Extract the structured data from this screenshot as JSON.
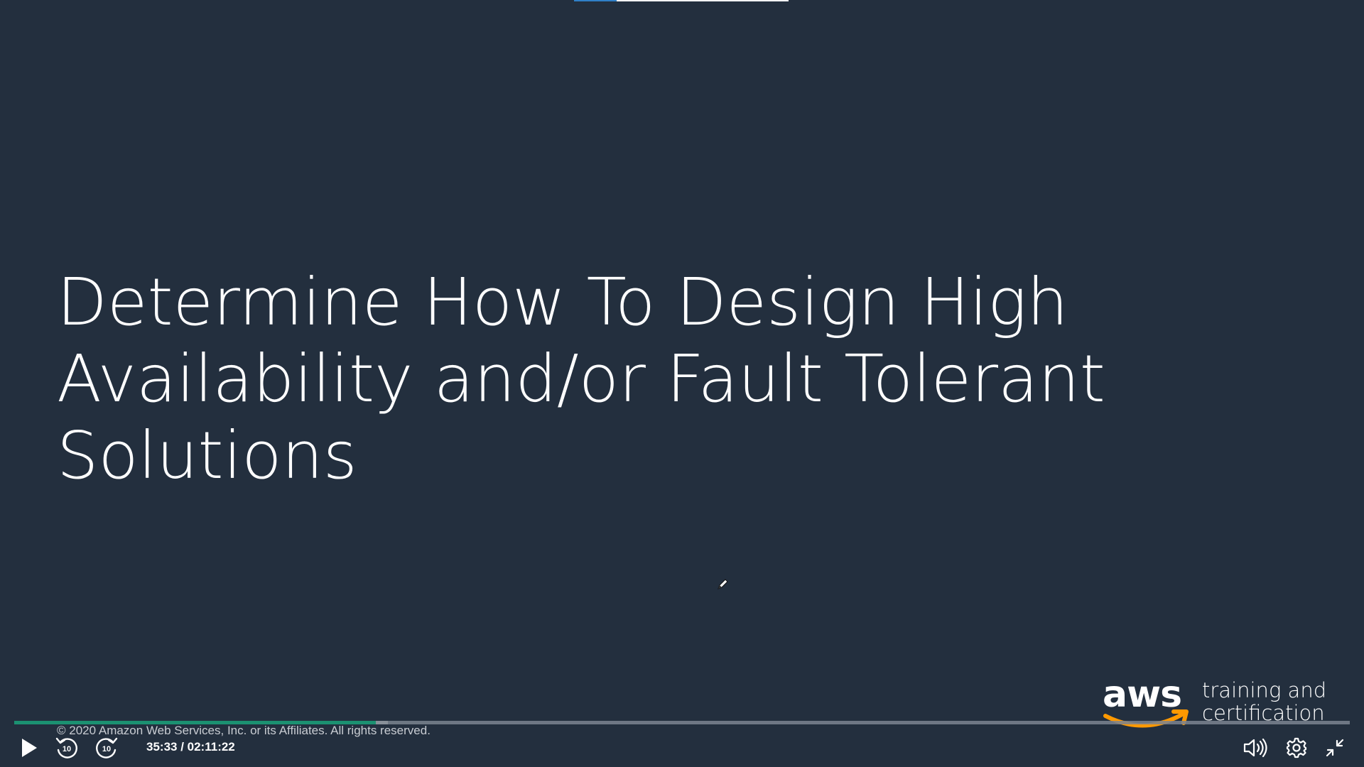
{
  "slide": {
    "title_lines": [
      "Determine How To Design High",
      "Availability and/or Fault Tolerant",
      "Solutions"
    ],
    "copyright": "© 2020 Amazon Web Services, Inc. or its Affiliates. All rights reserved.",
    "brand": {
      "wordmark": "aws",
      "tagline_line1": "training and",
      "tagline_line2": "certification"
    },
    "background_color": "#232f3e"
  },
  "player": {
    "current_time": "35:33",
    "duration": "02:11:22",
    "time_display": "35:33 / 02:11:22",
    "progress_fraction": 0.271,
    "buffered_fraction": 0.28,
    "progress_color": "#1aa37a",
    "controls": {
      "play": "play-icon",
      "rewind": "rewind-10-icon",
      "forward": "forward-10-icon",
      "volume": "volume-icon",
      "settings": "gear-icon",
      "exit_fullscreen": "exit-fullscreen-icon"
    },
    "skip_seconds_label": "10"
  },
  "colors": {
    "accent_orange": "#ff9900",
    "text_white": "#ffffff"
  }
}
